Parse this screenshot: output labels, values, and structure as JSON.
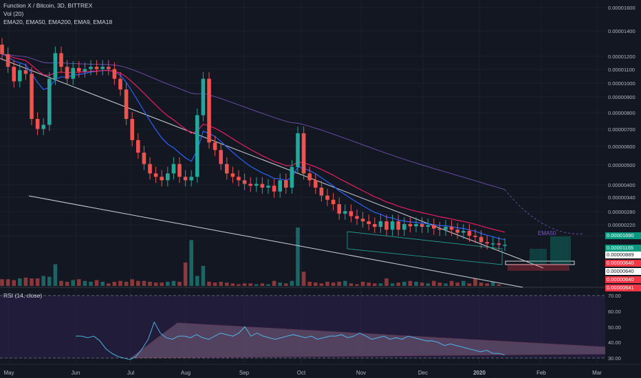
{
  "header": {
    "symbol_line": "Function X / Bitcoin, 3D, BITTREX",
    "vol_line": "Vol (20)",
    "ema_line": "EMA20, EMA50, EMA200, EMA9, EMA18",
    "rsi_line": "RSI (14, close)"
  },
  "annotation_ema50": "EMA50",
  "price_tags": [
    {
      "label": "0.00001690",
      "bg": "#089981",
      "fg": "#ffffff"
    },
    {
      "label": "0.00001165",
      "bg": "#089981",
      "fg": "#ffffff"
    },
    {
      "label": "0.00000889",
      "bg": "#ffffff",
      "fg": "#131722"
    },
    {
      "label": "0.00000640",
      "bg": "#f23645",
      "fg": "#ffffff"
    },
    {
      "label": "0.00000640",
      "bg": "#ffffff",
      "fg": "#131722"
    },
    {
      "label": "0.00000640",
      "bg": "#f23645",
      "fg": "#ffffff"
    },
    {
      "label": "0.00000641",
      "bg": "#f23645",
      "fg": "#ffffff"
    }
  ],
  "colors": {
    "background": "#131722",
    "up": "#26a69a",
    "down": "#ef5350",
    "ema_blue": "#2962ff",
    "ema_pink": "#e91e63",
    "ema_purple": "#7e57c2",
    "rsi_line": "#4fc3f7",
    "rsi_band": "#2a1f4a"
  },
  "chart_data": [
    {
      "type": "candlestick",
      "title": "Function X / Bitcoin, 3D, BITTREX",
      "y_scale": "log",
      "y_ticks": [
        "0.00001600",
        "0.00001400",
        "0.00001200",
        "0.00001100",
        "0.00001000",
        "0.00000900",
        "0.00000800",
        "0.00000700",
        "0.00000600",
        "0.00000500",
        "0.00000400",
        "0.00000340",
        "0.00000280",
        "0.00000220",
        "0.00000160"
      ],
      "x_ticks": [
        "May",
        "Jun",
        "Jul",
        "Aug",
        "Sep",
        "Oct",
        "Nov",
        "Dec",
        "2020",
        "Feb",
        "Mar"
      ],
      "ohlc_close_approx_x1e8": [
        1000,
        880,
        760,
        850,
        820,
        520,
        470,
        490,
        780,
        1010,
        880,
        780,
        870,
        840,
        860,
        880,
        860,
        880,
        860,
        780,
        700,
        520,
        420,
        370,
        330,
        300,
        290,
        280,
        300,
        330,
        290,
        280,
        290,
        540,
        780,
        410,
        380,
        330,
        300,
        290,
        280,
        270,
        265,
        270,
        260,
        265,
        250,
        280,
        260,
        320,
        450,
        300,
        280,
        260,
        240,
        230,
        220,
        200,
        205,
        195,
        190,
        185,
        180,
        175,
        185,
        170,
        185,
        170,
        180,
        176,
        180,
        175,
        178,
        172,
        170,
        175,
        170,
        165,
        168,
        160,
        158,
        150,
        148,
        148,
        146,
        146
      ],
      "indicators": [
        "EMA20",
        "EMA50",
        "EMA200",
        "EMA9",
        "EMA18"
      ],
      "drawings": [
        "descending upper trendline",
        "descending lower trendline",
        "descending channel Nov-Jan",
        "projected boxes Jan-Feb"
      ]
    },
    {
      "type": "bar",
      "title": "Vol (20)",
      "values": [
        8,
        8,
        7,
        9,
        10,
        9,
        9,
        12,
        11,
        26,
        6,
        5,
        7,
        8,
        6,
        5,
        7,
        5,
        3,
        5,
        6,
        5,
        8,
        6,
        6,
        5,
        4,
        4,
        5,
        6,
        5,
        28,
        55,
        12,
        24,
        5,
        4,
        5,
        4,
        3,
        2,
        3,
        3,
        2,
        3,
        2,
        6,
        4,
        3,
        6,
        70,
        17,
        5,
        4,
        3,
        5,
        4,
        5,
        6,
        3,
        2,
        5,
        4,
        3,
        3,
        9,
        3,
        4,
        5,
        6,
        5,
        4,
        3,
        6,
        4,
        3,
        6,
        4,
        6,
        3,
        9,
        4,
        3,
        5,
        2
      ]
    },
    {
      "type": "line",
      "title": "RSI (14, close)",
      "y_ticks": [
        "70.00",
        "60.00",
        "50.00",
        "40.00",
        "30.00"
      ],
      "ylim": [
        25,
        75
      ],
      "values": [
        44,
        44,
        43,
        44,
        41,
        36,
        33,
        31,
        30,
        29,
        31,
        36,
        42,
        53,
        46,
        43,
        42,
        44,
        44,
        43,
        45,
        43,
        42,
        44,
        46,
        45,
        44,
        46,
        50,
        44,
        46,
        44,
        43,
        42,
        43,
        44,
        45,
        44,
        43,
        44,
        42,
        43,
        44,
        44,
        45,
        43,
        44,
        46,
        44,
        42,
        43,
        44,
        42,
        43,
        42,
        44,
        43,
        42,
        41,
        41,
        40,
        38,
        39,
        38,
        37,
        36,
        35,
        34,
        35,
        33,
        33,
        32
      ]
    }
  ]
}
